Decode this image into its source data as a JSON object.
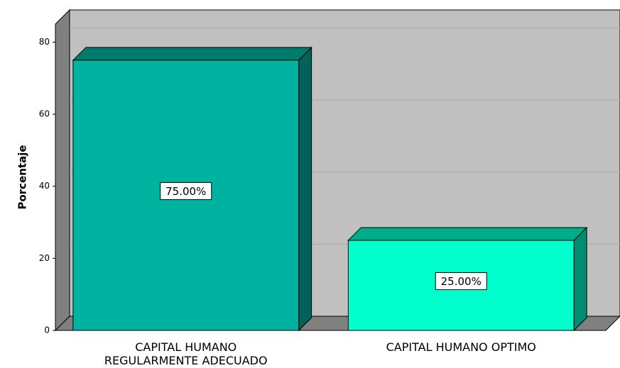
{
  "chart_data": {
    "type": "bar3d",
    "y_label": "Porcentaje",
    "categories": [
      "CAPITAL HUMANO REGULARMENTE ADECUADO",
      "CAPITAL HUMANO OPTIMO"
    ],
    "values": [
      75,
      25
    ],
    "value_labels": [
      "75.00%",
      "25.00%"
    ],
    "colors": [
      "#00b3a1",
      "#00ffcc"
    ],
    "ylim": [
      0,
      85
    ],
    "yticks": [
      0,
      20,
      40,
      60,
      80
    ],
    "grid": true
  }
}
